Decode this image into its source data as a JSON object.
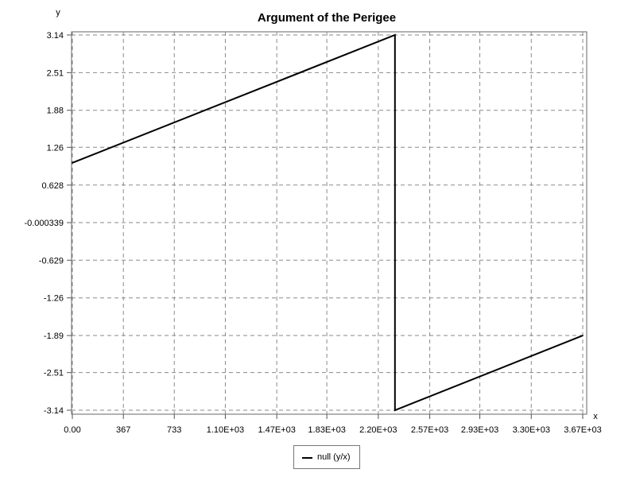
{
  "chart_data": {
    "type": "line",
    "title": "Argument of the Perigee",
    "xlabel": "x",
    "ylabel": "y",
    "xlim": [
      0,
      3670
    ],
    "ylim": [
      -3.14,
      3.14
    ],
    "x_ticks": [
      {
        "v": 0,
        "label": "0.00"
      },
      {
        "v": 367,
        "label": "367"
      },
      {
        "v": 733,
        "label": "733"
      },
      {
        "v": 1100,
        "label": "1.10E+03"
      },
      {
        "v": 1470,
        "label": "1.47E+03"
      },
      {
        "v": 1830,
        "label": "1.83E+03"
      },
      {
        "v": 2200,
        "label": "2.20E+03"
      },
      {
        "v": 2570,
        "label": "2.57E+03"
      },
      {
        "v": 2930,
        "label": "2.93E+03"
      },
      {
        "v": 3300,
        "label": "3.30E+03"
      },
      {
        "v": 3670,
        "label": "3.67E+03"
      }
    ],
    "y_ticks": [
      {
        "v": 3.14,
        "label": "3.14"
      },
      {
        "v": 2.51,
        "label": "2.51"
      },
      {
        "v": 1.88,
        "label": "1.88"
      },
      {
        "v": 1.26,
        "label": "1.26"
      },
      {
        "v": 0.628,
        "label": "0.628"
      },
      {
        "v": -0.000339,
        "label": "-0.000339"
      },
      {
        "v": -0.629,
        "label": "-0.629"
      },
      {
        "v": -1.26,
        "label": "-1.26"
      },
      {
        "v": -1.89,
        "label": "-1.89"
      },
      {
        "v": -2.51,
        "label": "-2.51"
      },
      {
        "v": -3.14,
        "label": "-3.14"
      }
    ],
    "grid": true,
    "legend_position": "bottom-center",
    "series": [
      {
        "name": "null (y/x)",
        "color": "#000000",
        "points": [
          {
            "x": 0,
            "y": 1.0
          },
          {
            "x": 2320,
            "y": 3.14
          },
          {
            "x": 2320,
            "y": -3.14
          },
          {
            "x": 3670,
            "y": -1.89
          }
        ]
      }
    ]
  }
}
